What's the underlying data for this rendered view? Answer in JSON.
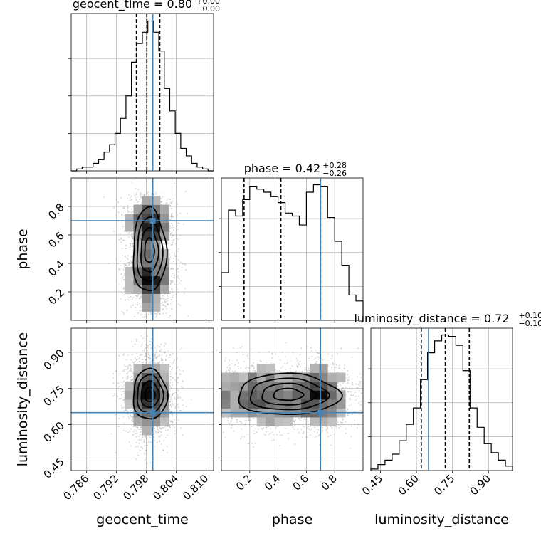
{
  "chart_data": {
    "type": "corner",
    "parameters": [
      "geocent_time",
      "phase",
      "luminosity_distance"
    ],
    "truths": {
      "geocent_time": 0.7993,
      "phase": 0.7,
      "luminosity_distance": 0.65
    },
    "colors": {
      "truth": "#4682b4",
      "hist": "#000000",
      "grid": "#b0b0b0"
    },
    "marginals": [
      {
        "param": "geocent_time",
        "title": {
          "main": "geocent_time = 0.80",
          "sup": "+0.00",
          "sub": "−0.00"
        },
        "range": [
          0.7829,
          0.8115
        ],
        "quantiles": [
          0.796,
          0.7981,
          0.8007
        ],
        "bins": [
          0.7829,
          0.784,
          0.7851,
          0.7862,
          0.7873,
          0.7884,
          0.7895,
          0.7906,
          0.7917,
          0.7928,
          0.7939,
          0.795,
          0.7961,
          0.7972,
          0.7983,
          0.7994,
          0.8005,
          0.8016,
          0.8027,
          0.8038,
          0.8049,
          0.806,
          0.8071,
          0.8082,
          0.8093,
          0.8104,
          0.8115
        ],
        "counts": [
          0,
          1,
          2,
          2,
          4,
          6,
          10,
          14,
          20,
          28,
          40,
          58,
          68,
          74,
          80,
          74,
          64,
          44,
          32,
          20,
          12,
          8,
          4,
          2,
          1,
          0
        ],
        "tick_values": [
          0.786,
          0.792,
          0.798,
          0.804,
          0.81
        ],
        "tick_labels": [
          "0.786",
          "0.792",
          "0.798",
          "0.804",
          "0.810"
        ]
      },
      {
        "param": "phase",
        "title": {
          "main": "phase = 0.42",
          "sup": "+0.28",
          "sub": "−0.26"
        },
        "range": [
          0.0,
          1.0
        ],
        "quantiles": [
          0.16,
          0.42,
          0.7
        ],
        "bins": [
          0.0,
          0.05,
          0.1,
          0.15,
          0.2,
          0.25,
          0.3,
          0.35,
          0.4,
          0.45,
          0.5,
          0.55,
          0.6,
          0.65,
          0.7,
          0.75,
          0.8,
          0.85,
          0.9,
          0.95,
          1.0
        ],
        "counts": [
          32,
          74,
          70,
          81,
          90,
          88,
          86,
          83,
          79,
          72,
          70,
          64,
          86,
          91,
          90,
          69,
          53,
          37,
          17,
          13
        ],
        "tick_values": [
          0.2,
          0.4,
          0.6,
          0.8
        ],
        "tick_labels": [
          "0.2",
          "0.4",
          "0.6",
          "0.8"
        ]
      },
      {
        "param": "luminosity_distance",
        "title": {
          "main": "luminosity_distance = 0.72",
          "sup": "+0.10",
          "sub": "−0.10"
        },
        "range": [
          0.41,
          1.0
        ],
        "quantiles": [
          0.62,
          0.72,
          0.82
        ],
        "bins": [
          0.41,
          0.4395,
          0.469,
          0.4985,
          0.528,
          0.5575,
          0.587,
          0.6165,
          0.646,
          0.6755,
          0.705,
          0.7345,
          0.764,
          0.7935,
          0.823,
          0.8525,
          0.882,
          0.9115,
          0.941,
          0.9705,
          1.0
        ],
        "counts": [
          1,
          4,
          7,
          11,
          20,
          31,
          42,
          61,
          79,
          87,
          91,
          90,
          84,
          67,
          42,
          29,
          18,
          12,
          7,
          3
        ],
        "tick_values": [
          0.45,
          0.6,
          0.75,
          0.9
        ],
        "tick_labels": [
          "0.45",
          "0.60",
          "0.75",
          "0.90"
        ]
      }
    ],
    "joint_2d": [
      {
        "x": "geocent_time",
        "y": "phase",
        "y_tick_values": [
          0.2,
          0.4,
          0.6,
          0.8
        ],
        "y_tick_labels": [
          "0.2",
          "0.4",
          "0.6",
          "0.8"
        ]
      },
      {
        "x": "geocent_time",
        "y": "luminosity_distance",
        "y_tick_values": [
          0.45,
          0.6,
          0.75,
          0.9
        ],
        "y_tick_labels": [
          "0.45",
          "0.60",
          "0.75",
          "0.90"
        ]
      },
      {
        "x": "phase",
        "y": "luminosity_distance",
        "y_tick_values": [],
        "y_tick_labels": []
      }
    ],
    "grid": true,
    "xlabels": [
      "geocent_time",
      "phase",
      "luminosity_distance"
    ],
    "ylabels": [
      "",
      "phase",
      "luminosity_distance"
    ]
  }
}
